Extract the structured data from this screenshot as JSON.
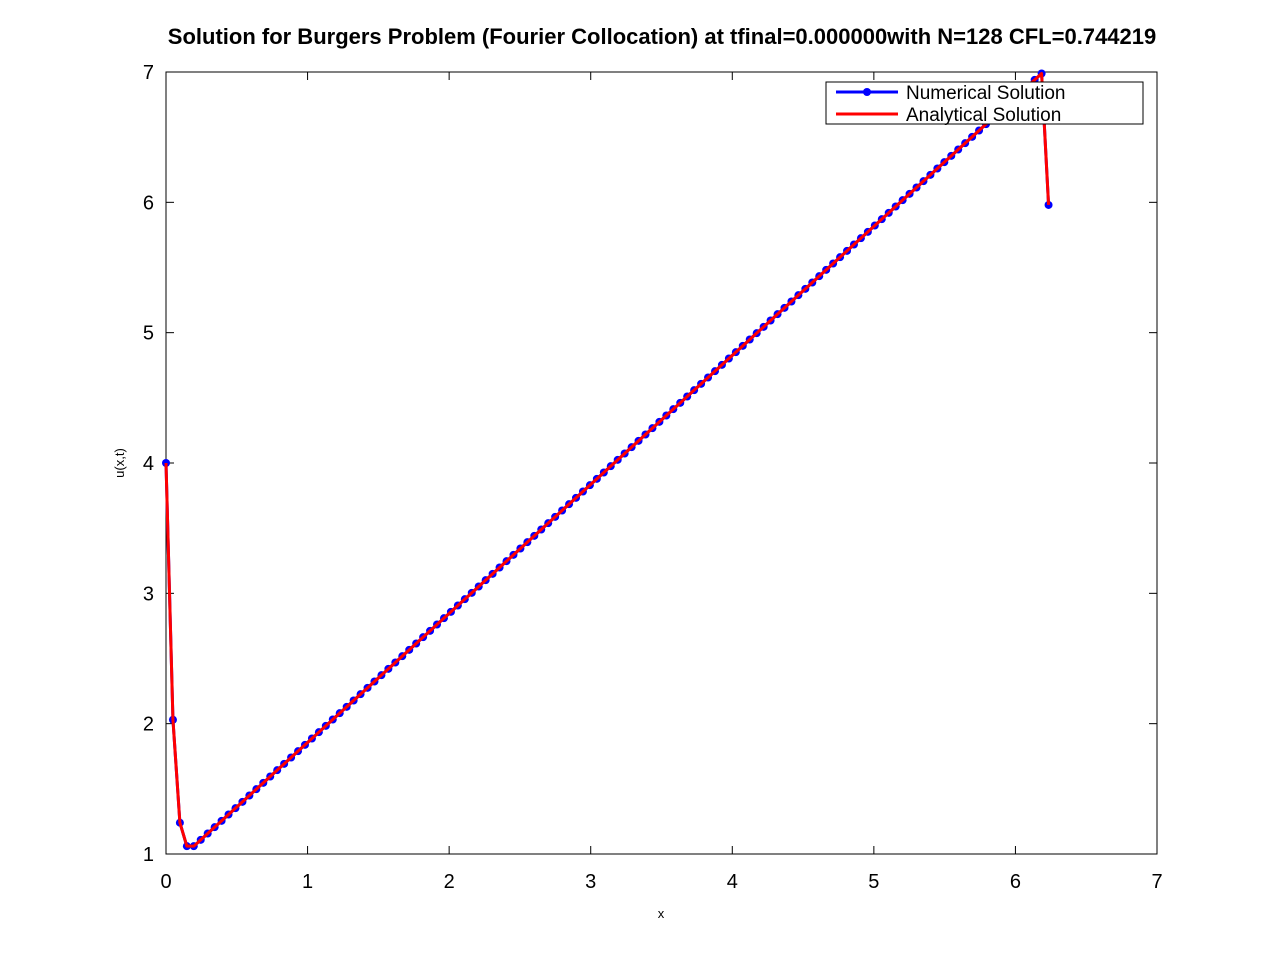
{
  "chart_data": {
    "type": "line",
    "title": "Solution for Burgers Problem (Fourier Collocation) at tfinal=0.000000with N=128  CFL=0.744219",
    "xlabel": "x",
    "ylabel": "u(x,t)",
    "xlim": [
      0,
      7
    ],
    "ylim": [
      1,
      7
    ],
    "xticks": [
      "0",
      "1",
      "2",
      "3",
      "4",
      "5",
      "6",
      "7"
    ],
    "yticks": [
      "1",
      "2",
      "3",
      "4",
      "5",
      "6",
      "7"
    ],
    "grid": false,
    "legend": {
      "placement": "top-right"
    },
    "x_start": 0,
    "x_step": 0.049087,
    "n_points": 128,
    "y_head": [
      4.0,
      2.03,
      1.24,
      1.06,
      1.06
    ],
    "linear_segment": {
      "x_from": 0.1963,
      "y_from": 1.06,
      "x_to": 6.135923,
      "y_to": 6.94
    },
    "y_tail": [
      5.98
    ],
    "series": [
      {
        "name": "Numerical Solution",
        "color": "#0000ff",
        "marker": "circle"
      },
      {
        "name": "Analytical Solution",
        "color": "#ff0000",
        "marker": "none"
      }
    ]
  }
}
